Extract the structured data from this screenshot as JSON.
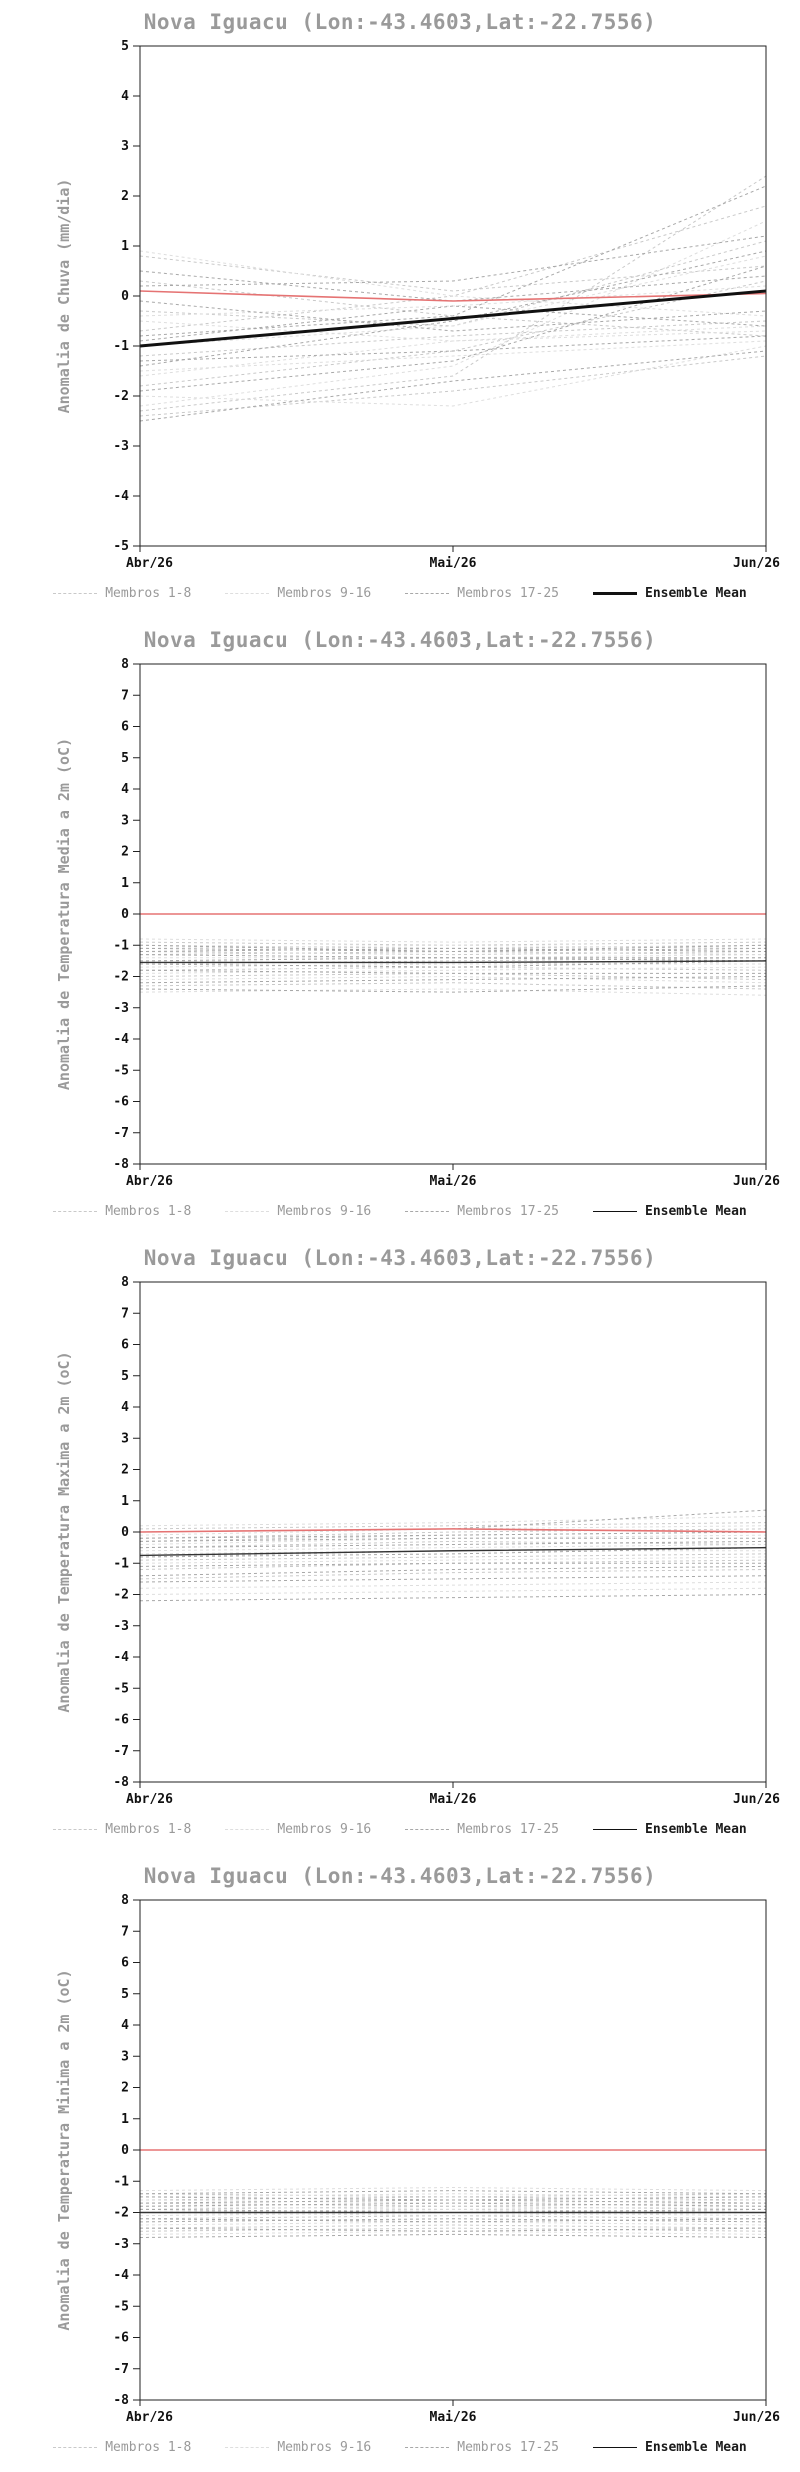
{
  "chart_data": [
    {
      "type": "line",
      "title": "Nova Iguacu (Lon:-43.4603,Lat:-22.7556)",
      "ylabel": "Anomalia de Chuva (mm/dia)",
      "xlabel": "",
      "ylim": [
        -5,
        5
      ],
      "ytick_step": 1,
      "x_labels": [
        "Abr/26",
        "Mai/26",
        "Jun/26"
      ],
      "grid": false,
      "legend_position": "bottom",
      "legend": [
        {
          "label": "Membros 1-8",
          "style": "dashed",
          "color": "#c9c9c9",
          "width": 1,
          "label_color": "#9a9a9a"
        },
        {
          "label": "Membros 9-16",
          "style": "dashed",
          "color": "#dedede",
          "width": 1,
          "label_color": "#9a9a9a"
        },
        {
          "label": "Membros 17-25",
          "style": "dashed",
          "color": "#a8a8a8",
          "width": 1,
          "label_color": "#9a9a9a"
        },
        {
          "label": "Ensemble Mean",
          "style": "solid",
          "color": "#111111",
          "width": 3,
          "label_color": "#1a1a1a"
        }
      ],
      "zero_line": {
        "color": "#e57373",
        "values": [
          0.1,
          -0.1,
          0.05
        ]
      },
      "ensemble_mean": {
        "name": "Ensemble Mean",
        "color": "#111111",
        "width": 3,
        "values": [
          -1.0,
          -0.45,
          0.1
        ]
      },
      "members": {
        "groups": [
          {
            "name": "Membros 1-8",
            "color": "#c9c9c9",
            "values": [
              [
                0.8,
                0.1,
                0.6
              ],
              [
                -0.3,
                -0.6,
                1.1
              ],
              [
                -1.2,
                -0.8,
                -0.5
              ],
              [
                -2.3,
                -1.6,
                2.4
              ],
              [
                0.3,
                -0.4,
                -0.8
              ],
              [
                -1.8,
                -1.1,
                0.3
              ],
              [
                -0.7,
                0.0,
                1.8
              ],
              [
                -2.4,
                -1.9,
                -1.2
              ]
            ]
          },
          {
            "name": "Membros 9-16",
            "color": "#dedede",
            "values": [
              [
                -0.5,
                -0.9,
                -0.6
              ],
              [
                -1.5,
                -1.2,
                -0.9
              ],
              [
                0.9,
                0.0,
                -0.4
              ],
              [
                -2.0,
                -2.2,
                -1.0
              ],
              [
                -1.0,
                -0.6,
                0.8
              ],
              [
                -0.4,
                -0.2,
                0.2
              ],
              [
                -1.6,
                -0.9,
                -0.7
              ],
              [
                -2.2,
                -1.4,
                1.5
              ]
            ]
          },
          {
            "name": "Membros 17-25",
            "color": "#a8a8a8",
            "values": [
              [
                0.5,
                -0.1,
                0.4
              ],
              [
                -0.8,
                -0.4,
                2.2
              ],
              [
                -1.3,
                -1.1,
                -0.8
              ],
              [
                -0.1,
                -0.7,
                -0.3
              ],
              [
                -1.9,
                -1.3,
                0.6
              ],
              [
                -2.5,
                -1.7,
                -1.1
              ],
              [
                0.2,
                0.3,
                1.2
              ],
              [
                -0.9,
                -0.2,
                -0.6
              ],
              [
                -1.4,
                -0.5,
                0.9
              ]
            ]
          }
        ]
      }
    },
    {
      "type": "line",
      "title": "Nova Iguacu (Lon:-43.4603,Lat:-22.7556)",
      "ylabel": "Anomalia de Temperatura Media a 2m (oC)",
      "xlabel": "",
      "ylim": [
        -8,
        8
      ],
      "ytick_step": 1,
      "x_labels": [
        "Abr/26",
        "Mai/26",
        "Jun/26"
      ],
      "grid": false,
      "legend_position": "bottom",
      "legend": [
        {
          "label": "Membros 1-8",
          "style": "dashed",
          "color": "#c9c9c9",
          "width": 1,
          "label_color": "#9a9a9a"
        },
        {
          "label": "Membros 9-16",
          "style": "dashed",
          "color": "#dedede",
          "width": 1,
          "label_color": "#9a9a9a"
        },
        {
          "label": "Membros 17-25",
          "style": "dashed",
          "color": "#a8a8a8",
          "width": 1,
          "label_color": "#9a9a9a"
        },
        {
          "label": "Ensemble Mean",
          "style": "solid",
          "color": "#111111",
          "width": 1.4,
          "label_color": "#1a1a1a"
        }
      ],
      "zero_line": {
        "color": "#e57373",
        "values": [
          0,
          0,
          0
        ]
      },
      "ensemble_mean": {
        "name": "Ensemble Mean",
        "color": "#333333",
        "width": 1.4,
        "values": [
          -1.55,
          -1.55,
          -1.5
        ]
      },
      "members": {
        "groups": [
          {
            "name": "Membros 1-8",
            "color": "#c9c9c9",
            "values": [
              [
                -1.0,
                -1.1,
                -1.0
              ],
              [
                -1.3,
                -1.2,
                -1.3
              ],
              [
                -1.6,
                -1.5,
                -1.4
              ],
              [
                -2.0,
                -1.9,
                -2.1
              ],
              [
                -0.9,
                -1.0,
                -0.9
              ],
              [
                -1.8,
                -1.7,
                -1.8
              ],
              [
                -1.2,
                -1.3,
                -1.2
              ],
              [
                -2.3,
                -2.2,
                -2.4
              ]
            ]
          },
          {
            "name": "Membros 9-16",
            "color": "#dedede",
            "values": [
              [
                -1.1,
                -1.0,
                -1.1
              ],
              [
                -1.5,
                -1.6,
                -1.5
              ],
              [
                -1.9,
                -1.8,
                -1.7
              ],
              [
                -2.1,
                -2.0,
                -2.2
              ],
              [
                -1.4,
                -1.4,
                -1.3
              ],
              [
                -0.8,
                -0.9,
                -0.8
              ],
              [
                -1.7,
                -1.6,
                -1.6
              ],
              [
                -2.5,
                -2.4,
                -2.6
              ]
            ]
          },
          {
            "name": "Membros 17-25",
            "color": "#a8a8a8",
            "values": [
              [
                -1.0,
                -1.2,
                -1.1
              ],
              [
                -1.3,
                -1.4,
                -1.4
              ],
              [
                -1.6,
                -1.7,
                -1.5
              ],
              [
                -2.2,
                -2.1,
                -2.0
              ],
              [
                -1.2,
                -1.1,
                -1.2
              ],
              [
                -1.8,
                -1.9,
                -1.9
              ],
              [
                -1.5,
                -1.4,
                -1.5
              ],
              [
                -2.4,
                -2.5,
                -2.3
              ],
              [
                -1.1,
                -1.2,
                -1.0
              ]
            ]
          }
        ]
      }
    },
    {
      "type": "line",
      "title": "Nova Iguacu (Lon:-43.4603,Lat:-22.7556)",
      "ylabel": "Anomalia de Temperatura Maxima a 2m (oC)",
      "xlabel": "",
      "ylim": [
        -8,
        8
      ],
      "ytick_step": 1,
      "x_labels": [
        "Abr/26",
        "Mai/26",
        "Jun/26"
      ],
      "grid": false,
      "legend_position": "bottom",
      "legend": [
        {
          "label": "Membros 1-8",
          "style": "dashed",
          "color": "#c9c9c9",
          "width": 1,
          "label_color": "#9a9a9a"
        },
        {
          "label": "Membros 9-16",
          "style": "dashed",
          "color": "#dedede",
          "width": 1,
          "label_color": "#9a9a9a"
        },
        {
          "label": "Membros 17-25",
          "style": "dashed",
          "color": "#a8a8a8",
          "width": 1,
          "label_color": "#9a9a9a"
        },
        {
          "label": "Ensemble Mean",
          "style": "solid",
          "color": "#111111",
          "width": 1.4,
          "label_color": "#1a1a1a"
        }
      ],
      "zero_line": {
        "color": "#e57373",
        "values": [
          0,
          0.1,
          0
        ]
      },
      "ensemble_mean": {
        "name": "Ensemble Mean",
        "color": "#333333",
        "width": 1.4,
        "values": [
          -0.75,
          -0.6,
          -0.5
        ]
      },
      "members": {
        "groups": [
          {
            "name": "Membros 1-8",
            "color": "#c9c9c9",
            "values": [
              [
                -0.2,
                0.0,
                0.1
              ],
              [
                -0.5,
                -0.3,
                -0.4
              ],
              [
                -0.8,
                -0.6,
                -0.5
              ],
              [
                -1.2,
                -1.0,
                -0.9
              ],
              [
                0.1,
                0.2,
                0.3
              ],
              [
                -0.3,
                -0.1,
                0.0
              ],
              [
                -0.9,
                -0.8,
                -0.7
              ],
              [
                -1.5,
                -1.3,
                -1.2
              ]
            ]
          },
          {
            "name": "Membros 9-16",
            "color": "#dedede",
            "values": [
              [
                -0.1,
                0.1,
                0.2
              ],
              [
                -0.6,
                -0.5,
                -0.4
              ],
              [
                -1.0,
                -0.9,
                -0.8
              ],
              [
                -1.8,
                -1.7,
                -1.6
              ],
              [
                -0.4,
                -0.2,
                -0.1
              ],
              [
                0.2,
                0.3,
                0.5
              ],
              [
                -0.7,
                -0.6,
                -0.6
              ],
              [
                -2.0,
                -1.9,
                -1.8
              ]
            ]
          },
          {
            "name": "Membros 17-25",
            "color": "#a8a8a8",
            "values": [
              [
                -0.2,
                -0.1,
                0.0
              ],
              [
                -0.5,
                -0.4,
                -0.3
              ],
              [
                -1.1,
                -1.0,
                -1.0
              ],
              [
                -1.4,
                -1.2,
                -1.1
              ],
              [
                0.0,
                0.1,
                0.7
              ],
              [
                -0.8,
                -0.7,
                -0.5
              ],
              [
                -1.6,
                -1.5,
                -1.4
              ],
              [
                -0.3,
                -0.2,
                -0.2
              ],
              [
                -2.2,
                -2.1,
                -2.0
              ]
            ]
          }
        ]
      }
    },
    {
      "type": "line",
      "title": "Nova Iguacu (Lon:-43.4603,Lat:-22.7556)",
      "ylabel": "Anomalia de Temperatura Minima a 2m (oC)",
      "xlabel": "",
      "ylim": [
        -8,
        8
      ],
      "ytick_step": 1,
      "x_labels": [
        "Abr/26",
        "Mai/26",
        "Jun/26"
      ],
      "grid": false,
      "legend_position": "bottom",
      "legend": [
        {
          "label": "Membros 1-8",
          "style": "dashed",
          "color": "#c9c9c9",
          "width": 1,
          "label_color": "#9a9a9a"
        },
        {
          "label": "Membros 9-16",
          "style": "dashed",
          "color": "#dedede",
          "width": 1,
          "label_color": "#9a9a9a"
        },
        {
          "label": "Membros 17-25",
          "style": "dashed",
          "color": "#a8a8a8",
          "width": 1,
          "label_color": "#9a9a9a"
        },
        {
          "label": "Ensemble Mean",
          "style": "solid",
          "color": "#111111",
          "width": 1.4,
          "label_color": "#1a1a1a"
        }
      ],
      "zero_line": {
        "color": "#e57373",
        "values": [
          0,
          0,
          0
        ]
      },
      "ensemble_mean": {
        "name": "Ensemble Mean",
        "color": "#333333",
        "width": 1.4,
        "values": [
          -2.0,
          -2.0,
          -2.0
        ]
      },
      "members": {
        "groups": [
          {
            "name": "Membros 1-8",
            "color": "#c9c9c9",
            "values": [
              [
                -1.6,
                -1.5,
                -1.6
              ],
              [
                -1.9,
                -1.8,
                -1.9
              ],
              [
                -2.2,
                -2.1,
                -2.2
              ],
              [
                -2.5,
                -2.4,
                -2.5
              ],
              [
                -1.4,
                -1.5,
                -1.4
              ],
              [
                -2.0,
                -1.9,
                -2.0
              ],
              [
                -1.7,
                -1.8,
                -1.7
              ],
              [
                -2.6,
                -2.5,
                -2.6
              ]
            ]
          },
          {
            "name": "Membros 9-16",
            "color": "#dedede",
            "values": [
              [
                -1.5,
                -1.4,
                -1.5
              ],
              [
                -1.8,
                -1.9,
                -1.8
              ],
              [
                -2.1,
                -2.0,
                -2.1
              ],
              [
                -2.4,
                -2.3,
                -2.4
              ],
              [
                -1.6,
                -1.7,
                -1.6
              ],
              [
                -1.3,
                -1.2,
                -1.3
              ],
              [
                -2.0,
                -2.1,
                -2.0
              ],
              [
                -2.7,
                -2.6,
                -2.7
              ]
            ]
          },
          {
            "name": "Membros 17-25",
            "color": "#a8a8a8",
            "values": [
              [
                -1.5,
                -1.6,
                -1.5
              ],
              [
                -1.8,
                -1.7,
                -1.8
              ],
              [
                -2.2,
                -2.3,
                -2.2
              ],
              [
                -2.5,
                -2.6,
                -2.5
              ],
              [
                -1.4,
                -1.3,
                -1.4
              ],
              [
                -1.9,
                -2.0,
                -1.9
              ],
              [
                -2.3,
                -2.2,
                -2.3
              ],
              [
                -2.8,
                -2.7,
                -2.8
              ],
              [
                -1.7,
                -1.6,
                -1.7
              ]
            ]
          }
        ]
      }
    }
  ]
}
